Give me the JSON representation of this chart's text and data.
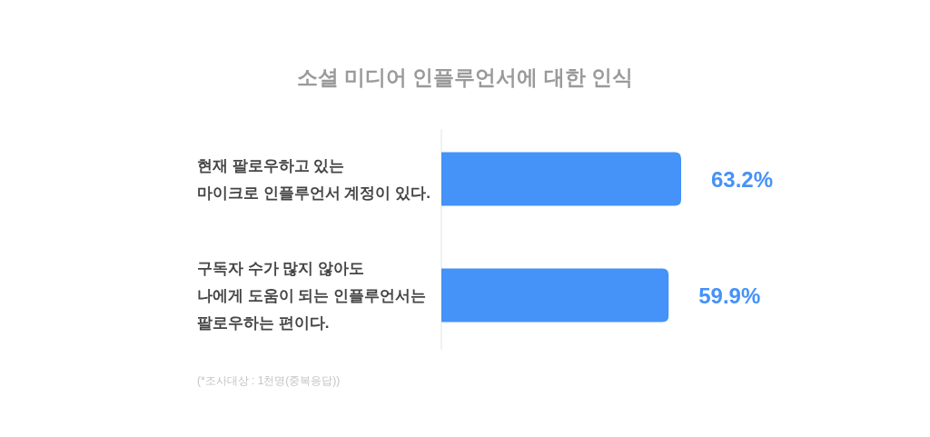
{
  "chart_data": {
    "type": "bar",
    "orientation": "horizontal",
    "title": "소셜 미디어 인플루언서에 대한 인식",
    "categories": [
      "현재 팔로우하고 있는\n마이크로 인플루언서 계정이 있다.",
      "구독자 수가 많지 않아도\n나에게 도움이 되는 인플루언서는\n팔로우하는 편이다."
    ],
    "values": [
      63.2,
      59.9
    ],
    "color": "#4592f9",
    "value_labels": [
      "63.2%",
      "59.9%"
    ],
    "annotations": [
      "(*조사대상 : 1천명(중복응답))"
    ]
  }
}
